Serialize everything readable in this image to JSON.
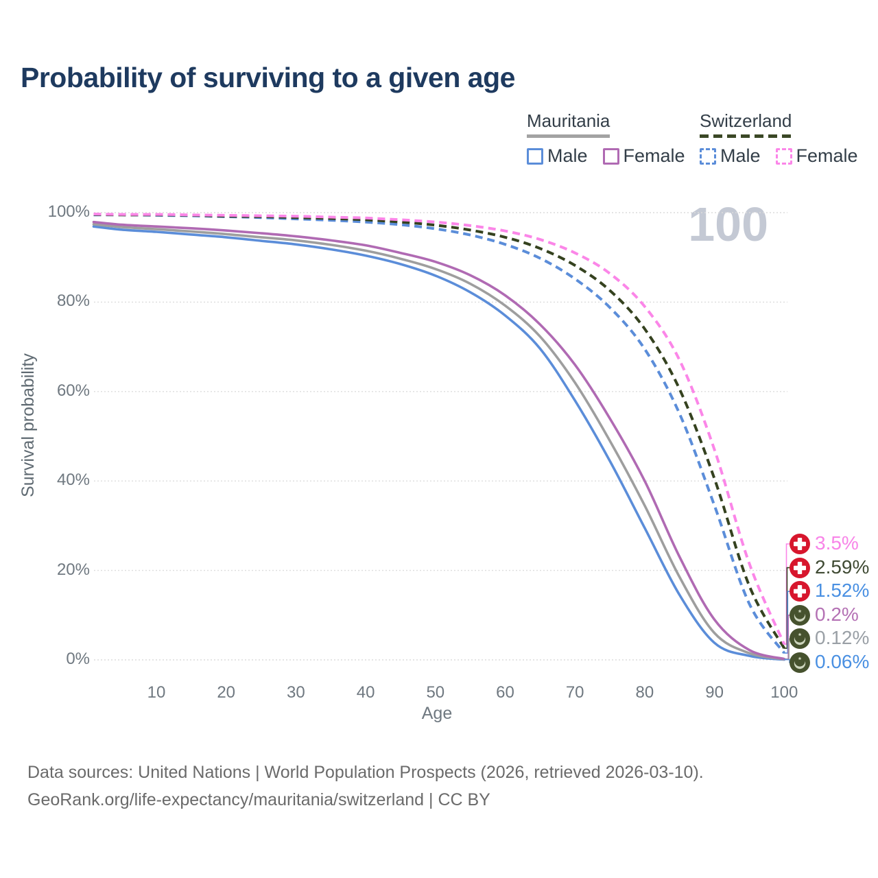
{
  "title": "Probability of surviving to a given age",
  "watermark": "100",
  "legend": {
    "groups": [
      {
        "country": "Mauritania",
        "line_style": "solid",
        "underline_color": "#a3a3a3",
        "items": [
          {
            "label": "Male",
            "color": "#5b8dd9",
            "dash": false
          },
          {
            "label": "Female",
            "color": "#b06ab3",
            "dash": false
          }
        ]
      },
      {
        "country": "Switzerland",
        "line_style": "dashed",
        "underline_color": "#3b4826",
        "items": [
          {
            "label": "Male",
            "color": "#5b8dd9",
            "dash": true
          },
          {
            "label": "Female",
            "color": "#fb86e8",
            "dash": true
          }
        ]
      }
    ]
  },
  "chart_data": {
    "type": "line",
    "title": "Probability of surviving to a given age",
    "xlabel": "Age",
    "ylabel": "Survival probability",
    "xlim": [
      1,
      100
    ],
    "ylim": [
      0,
      100
    ],
    "x_ticks": [
      10,
      20,
      30,
      40,
      50,
      60,
      70,
      80,
      90,
      100
    ],
    "y_ticks": [
      "0%",
      "20%",
      "40%",
      "60%",
      "80%",
      "100%"
    ],
    "grid": "horizontal-only",
    "legend_position": "top-right",
    "ages": [
      1,
      5,
      10,
      15,
      20,
      25,
      30,
      35,
      40,
      45,
      50,
      55,
      60,
      65,
      70,
      75,
      80,
      85,
      90,
      95,
      100
    ],
    "series": [
      {
        "name": "Mauritania Male",
        "country": "Mauritania",
        "sex": "Male",
        "color": "#5b8dd9",
        "dash": false,
        "flag": "mauritania",
        "end_label": "0.06%",
        "label_color": "#4a90e2",
        "label_row": 5,
        "values": [
          96.9,
          96.2,
          95.7,
          95.1,
          94.5,
          93.7,
          92.9,
          91.8,
          90.4,
          88.5,
          85.9,
          82.2,
          77.0,
          69.6,
          58.0,
          44.5,
          29.5,
          14.5,
          3.8,
          0.9,
          0.06
        ]
      },
      {
        "name": "Mauritania Both sexes",
        "country": "Mauritania",
        "sex": "Both sexes",
        "color": "#9e9e9e",
        "dash": false,
        "flag": "mauritania",
        "end_label": "0.12%",
        "label_color": "#9aa0a6",
        "label_row": 4,
        "values": [
          97.4,
          96.8,
          96.3,
          95.8,
          95.2,
          94.5,
          93.8,
          92.8,
          91.5,
          89.7,
          87.4,
          84.1,
          79.2,
          72.3,
          62.0,
          49.0,
          34.5,
          18.5,
          6.0,
          1.5,
          0.12
        ]
      },
      {
        "name": "Mauritania Female",
        "country": "Mauritania",
        "sex": "Female",
        "color": "#b06ab3",
        "dash": false,
        "flag": "mauritania",
        "end_label": "0.2%",
        "label_color": "#b471b4",
        "label_row": 3,
        "values": [
          97.9,
          97.3,
          96.9,
          96.5,
          96.0,
          95.4,
          94.7,
          93.8,
          92.7,
          91.0,
          89.0,
          86.0,
          81.5,
          75.0,
          66.0,
          54.0,
          40.0,
          23.0,
          9.0,
          2.2,
          0.2
        ]
      },
      {
        "name": "Switzerland Male",
        "country": "Switzerland",
        "sex": "Male",
        "color": "#5b8dd9",
        "dash": true,
        "flag": "switzerland",
        "end_label": "1.52%",
        "label_color": "#4a90e2",
        "label_row": 2,
        "values": [
          99.5,
          99.5,
          99.4,
          99.3,
          99.1,
          98.9,
          98.6,
          98.3,
          97.9,
          97.3,
          96.4,
          95.0,
          92.9,
          89.8,
          85.2,
          78.8,
          69.5,
          55.0,
          34.5,
          12.5,
          1.52
        ]
      },
      {
        "name": "Switzerland Both sexes",
        "country": "Switzerland",
        "sex": "Both sexes",
        "color": "#35421f",
        "dash": true,
        "flag": "switzerland",
        "end_label": "2.59%",
        "label_color": "#3f4a33",
        "label_row": 1,
        "values": [
          99.6,
          99.5,
          99.5,
          99.4,
          99.2,
          99.1,
          98.9,
          98.7,
          98.4,
          97.9,
          97.2,
          96.1,
          94.5,
          92.0,
          88.2,
          82.6,
          74.0,
          60.5,
          40.5,
          16.5,
          2.59
        ]
      },
      {
        "name": "Switzerland Female",
        "country": "Switzerland",
        "sex": "Female",
        "color": "#fb86e8",
        "dash": true,
        "flag": "switzerland",
        "end_label": "3.5%",
        "label_color": "#f884e8",
        "label_row": 0,
        "values": [
          99.7,
          99.6,
          99.6,
          99.5,
          99.4,
          99.3,
          99.2,
          99.0,
          98.8,
          98.4,
          97.9,
          97.1,
          95.9,
          94.0,
          91.0,
          86.4,
          79.0,
          67.0,
          47.0,
          21.5,
          3.5
        ]
      }
    ]
  },
  "footer": {
    "line1": "Data sources: United Nations | World Population Prospects (2026, retrieved 2026-03-10).",
    "line2": "GeoRank.org/life-expectancy/mauritania/switzerland | CC BY"
  }
}
